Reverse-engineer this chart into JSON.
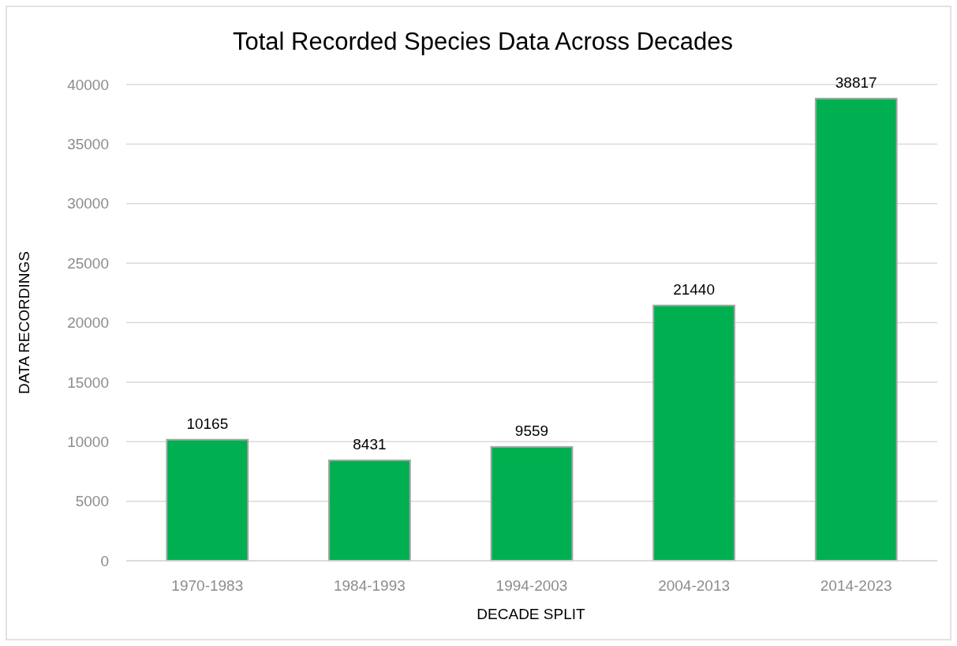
{
  "chart_data": {
    "type": "bar",
    "title": "Total Recorded Species Data Across Decades",
    "xlabel": "DECADE SPLIT",
    "ylabel": "DATA RECORDINGS",
    "categories": [
      "1970-1983",
      "1984-1993",
      "1994-2003",
      "2004-2013",
      "2014-2023"
    ],
    "values": [
      10165,
      8431,
      9559,
      21440,
      38817
    ],
    "color": "#00b050",
    "ylim": [
      0,
      40000
    ],
    "yticks": [
      0,
      5000,
      10000,
      15000,
      20000,
      25000,
      30000,
      35000,
      40000
    ],
    "grid": "y",
    "data_labels": true
  }
}
